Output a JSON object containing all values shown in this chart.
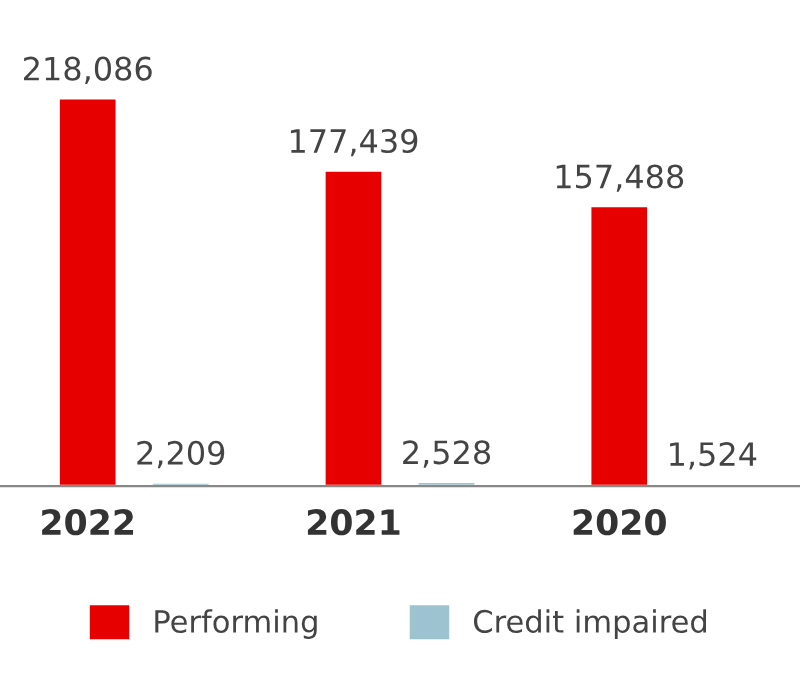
{
  "chart_data": {
    "type": "bar",
    "categories": [
      "2022",
      "2021",
      "2020"
    ],
    "series": [
      {
        "name": "Performing",
        "color": "#e60000",
        "values": [
          218086,
          177439,
          157488
        ],
        "value_labels": [
          "218,086",
          "177,439",
          "157,488"
        ]
      },
      {
        "name": "Credit impaired",
        "color": "#9dc3d0",
        "values": [
          2209,
          2528,
          1524
        ],
        "value_labels": [
          "2,209",
          "2,528",
          "1,524"
        ]
      }
    ],
    "legend": "bottom",
    "grid": false
  }
}
